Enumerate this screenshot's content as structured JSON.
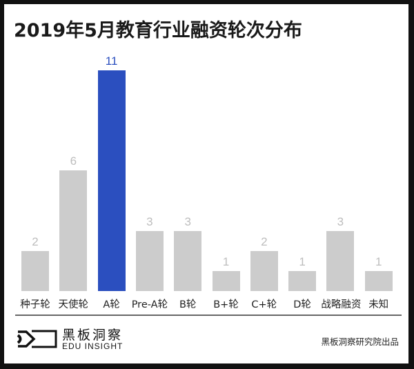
{
  "title": "2019年5月教育行业融资轮次分布",
  "colors": {
    "highlight": "#2b4fbf",
    "default": "#cccccc",
    "default_label": "#bdbdbd",
    "highlight_label": "#2b4fbf"
  },
  "chart_data": {
    "type": "bar",
    "title": "2019年5月教育行业融资轮次分布",
    "xlabel": "",
    "ylabel": "",
    "categories": [
      "种子轮",
      "天使轮",
      "A轮",
      "Pre-A轮",
      "B轮",
      "B+轮",
      "C+轮",
      "D轮",
      "战略融资",
      "未知"
    ],
    "values": [
      2,
      6,
      11,
      3,
      3,
      1,
      2,
      1,
      3,
      1
    ],
    "highlight_index": 2,
    "ylim": [
      0,
      11
    ],
    "grid": false,
    "data_labels": true
  },
  "labels": {
    "v0": "2",
    "v1": "6",
    "v2": "11",
    "v3": "3",
    "v4": "3",
    "v5": "1",
    "v6": "2",
    "v7": "1",
    "v8": "3",
    "v9": "1",
    "c0": "种子轮",
    "c1": "天使轮",
    "c2": "A轮",
    "c3": "Pre-A轮",
    "c4": "B轮",
    "c5": "B+轮",
    "c6": "C+轮",
    "c7": "D轮",
    "c8": "战略融资",
    "c9": "未知"
  },
  "footer": {
    "logo_cn": "黑板洞察",
    "logo_en": "EDU INSIGHT",
    "logo_icon": "eye-chevron-icon",
    "source": "黑板洞察研究院出品"
  }
}
